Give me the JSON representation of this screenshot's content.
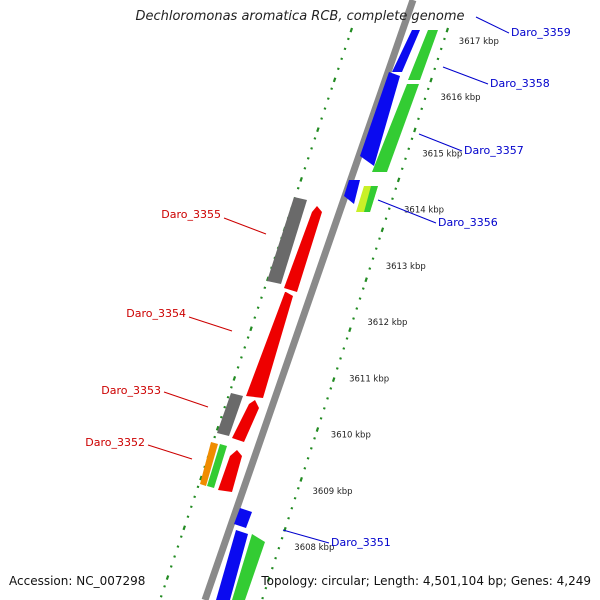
{
  "title": "Dechloromonas aromatica RCB, complete genome",
  "footer": {
    "accession": "Accession: NC_007298",
    "topology": "Topology: circular; Length: 4,501,104 bp; Genes: 4,249"
  },
  "colors": {
    "backbone": "#8a8a8a",
    "tick": "#228b22",
    "forward_label": "#0000cc",
    "reverse_label": "#cc0000",
    "gene_blue": "#0a0af0",
    "gene_green": "#33cc33",
    "gene_red": "#ee0000",
    "gene_gray": "#6a6a6a",
    "gene_orange": "#f08c00",
    "gene_yellowgreen": "#c8f028"
  },
  "scale_labels": [
    "3608 kbp",
    "3609 kbp",
    "3610 kbp",
    "3611 kbp",
    "3612 kbp",
    "3613 kbp",
    "3614 kbp",
    "3615 kbp",
    "3616 kbp",
    "3617 kbp"
  ],
  "genes_forward": [
    {
      "label": "Daro_3359"
    },
    {
      "label": "Daro_3358"
    },
    {
      "label": "Daro_3357"
    },
    {
      "label": "Daro_3356"
    },
    {
      "label": "Daro_3351"
    }
  ],
  "genes_reverse": [
    {
      "label": "Daro_3355"
    },
    {
      "label": "Daro_3354"
    },
    {
      "label": "Daro_3353"
    },
    {
      "label": "Daro_3352"
    }
  ]
}
